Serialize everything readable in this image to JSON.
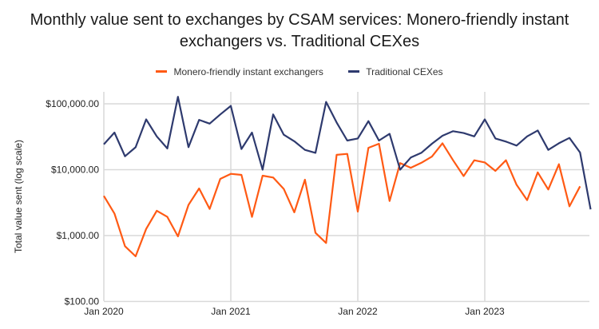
{
  "chart_data": {
    "type": "line",
    "title": "Monthly value sent to exchanges by CSAM services: Monero-friendly instant exchangers vs. Traditional CEXes",
    "title_lines": [
      "Monthly value sent to exchanges by CSAM services: Monero-friendly instant",
      "exchangers vs. Traditional CEXes"
    ],
    "ylabel": "Total value sent (log scale)",
    "xlabel": "",
    "y_scale": "log",
    "ylim": [
      100,
      130000
    ],
    "y_ticks": [
      100,
      1000,
      10000,
      100000
    ],
    "y_tick_labels": [
      "$100.00",
      "$1,000.00",
      "$10,000.00",
      "$100,000.00"
    ],
    "x_start": "2020-01",
    "x_ticks": [
      "2020-01",
      "2021-01",
      "2022-01",
      "2023-01"
    ],
    "x_tick_labels": [
      "Jan 2020",
      "Jan 2021",
      "Jan 2022",
      "Jan 2023"
    ],
    "grid": true,
    "legend_position": "top",
    "series": [
      {
        "name": "Monero-friendly instant exchangers",
        "color": "#ff5a14",
        "values": [
          4000,
          2160,
          690,
          484,
          1260,
          2380,
          1920,
          973,
          2920,
          5190,
          2540,
          7260,
          8650,
          8340,
          1920,
          8100,
          7600,
          5100,
          2250,
          7050,
          1100,
          771,
          16800,
          17400,
          2310,
          21500,
          24800,
          3350,
          12600,
          10700,
          12700,
          15800,
          25200,
          13900,
          8000,
          13900,
          12900,
          9600,
          13900,
          5900,
          3450,
          9100,
          5000,
          12100,
          2780,
          5600
        ]
      },
      {
        "name": "Traditional CEXes",
        "color": "#2e3a6e",
        "values": [
          24300,
          36600,
          16000,
          21900,
          58000,
          32000,
          21000,
          128000,
          22000,
          57000,
          50000,
          69000,
          93000,
          20600,
          36600,
          10000,
          69000,
          34000,
          27000,
          20000,
          18000,
          107000,
          52000,
          27700,
          29800,
          54600,
          27700,
          35000,
          10000,
          15300,
          18000,
          24800,
          32700,
          38400,
          36000,
          32000,
          58000,
          29800,
          26700,
          23200,
          32000,
          39400,
          20000,
          25200,
          30400,
          18200,
          2500
        ]
      }
    ]
  }
}
